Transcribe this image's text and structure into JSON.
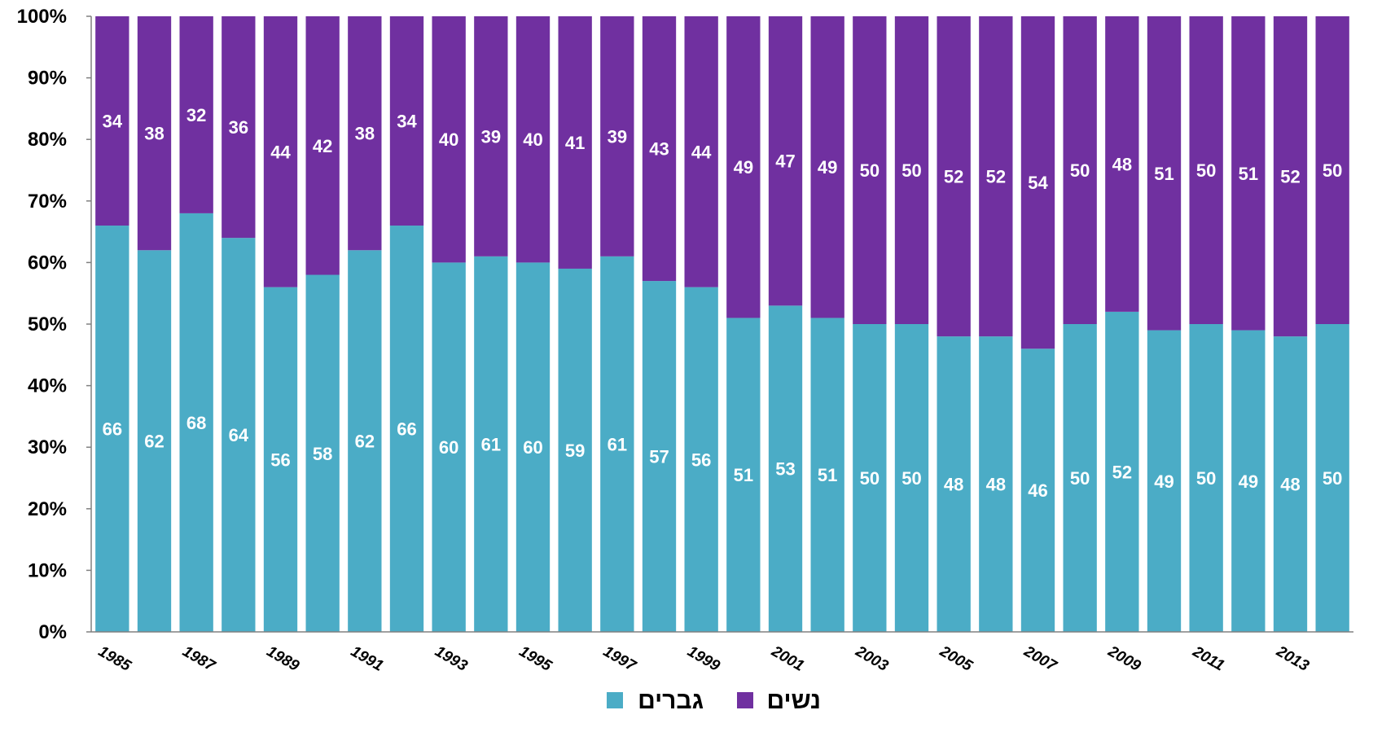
{
  "chart_data": {
    "type": "bar",
    "stacked": "percent",
    "title": "",
    "xlabel": "",
    "ylabel": "",
    "ylim": [
      0,
      100
    ],
    "y_ticks": [
      "0%",
      "10%",
      "20%",
      "30%",
      "40%",
      "50%",
      "60%",
      "70%",
      "80%",
      "90%",
      "100%"
    ],
    "categories": [
      "1985",
      "1986",
      "1987",
      "1988",
      "1989",
      "1990",
      "1991",
      "1992",
      "1993",
      "1994",
      "1995",
      "1996",
      "1997",
      "1998",
      "1999",
      "2000",
      "2001",
      "2002",
      "2003",
      "2004",
      "2005",
      "2006",
      "2007",
      "2008",
      "2009",
      "2010",
      "2011",
      "2012",
      "2013",
      "2014"
    ],
    "x_tick_labels": [
      "1985",
      "",
      "1987",
      "",
      "1989",
      "",
      "1991",
      "",
      "1993",
      "",
      "1995",
      "",
      "1997",
      "",
      "1999",
      "",
      "2001",
      "",
      "2003",
      "",
      "2005",
      "",
      "2007",
      "",
      "2009",
      "",
      "2011",
      "",
      "2013",
      ""
    ],
    "series": [
      {
        "name": "גברים",
        "color": "#4BACC6",
        "values": [
          66,
          62,
          68,
          64,
          56,
          58,
          62,
          66,
          60,
          61,
          60,
          59,
          61,
          57,
          56,
          51,
          53,
          51,
          50,
          50,
          48,
          48,
          46,
          50,
          52,
          49,
          50,
          49,
          48,
          50
        ]
      },
      {
        "name": "נשים",
        "color": "#7030A0",
        "values": [
          34,
          38,
          32,
          36,
          44,
          42,
          38,
          34,
          40,
          39,
          40,
          41,
          39,
          43,
          44,
          49,
          47,
          49,
          50,
          50,
          52,
          52,
          54,
          50,
          48,
          51,
          50,
          51,
          52,
          50
        ]
      }
    ],
    "data_labels": true,
    "grid": false,
    "legend_position": "bottom"
  }
}
